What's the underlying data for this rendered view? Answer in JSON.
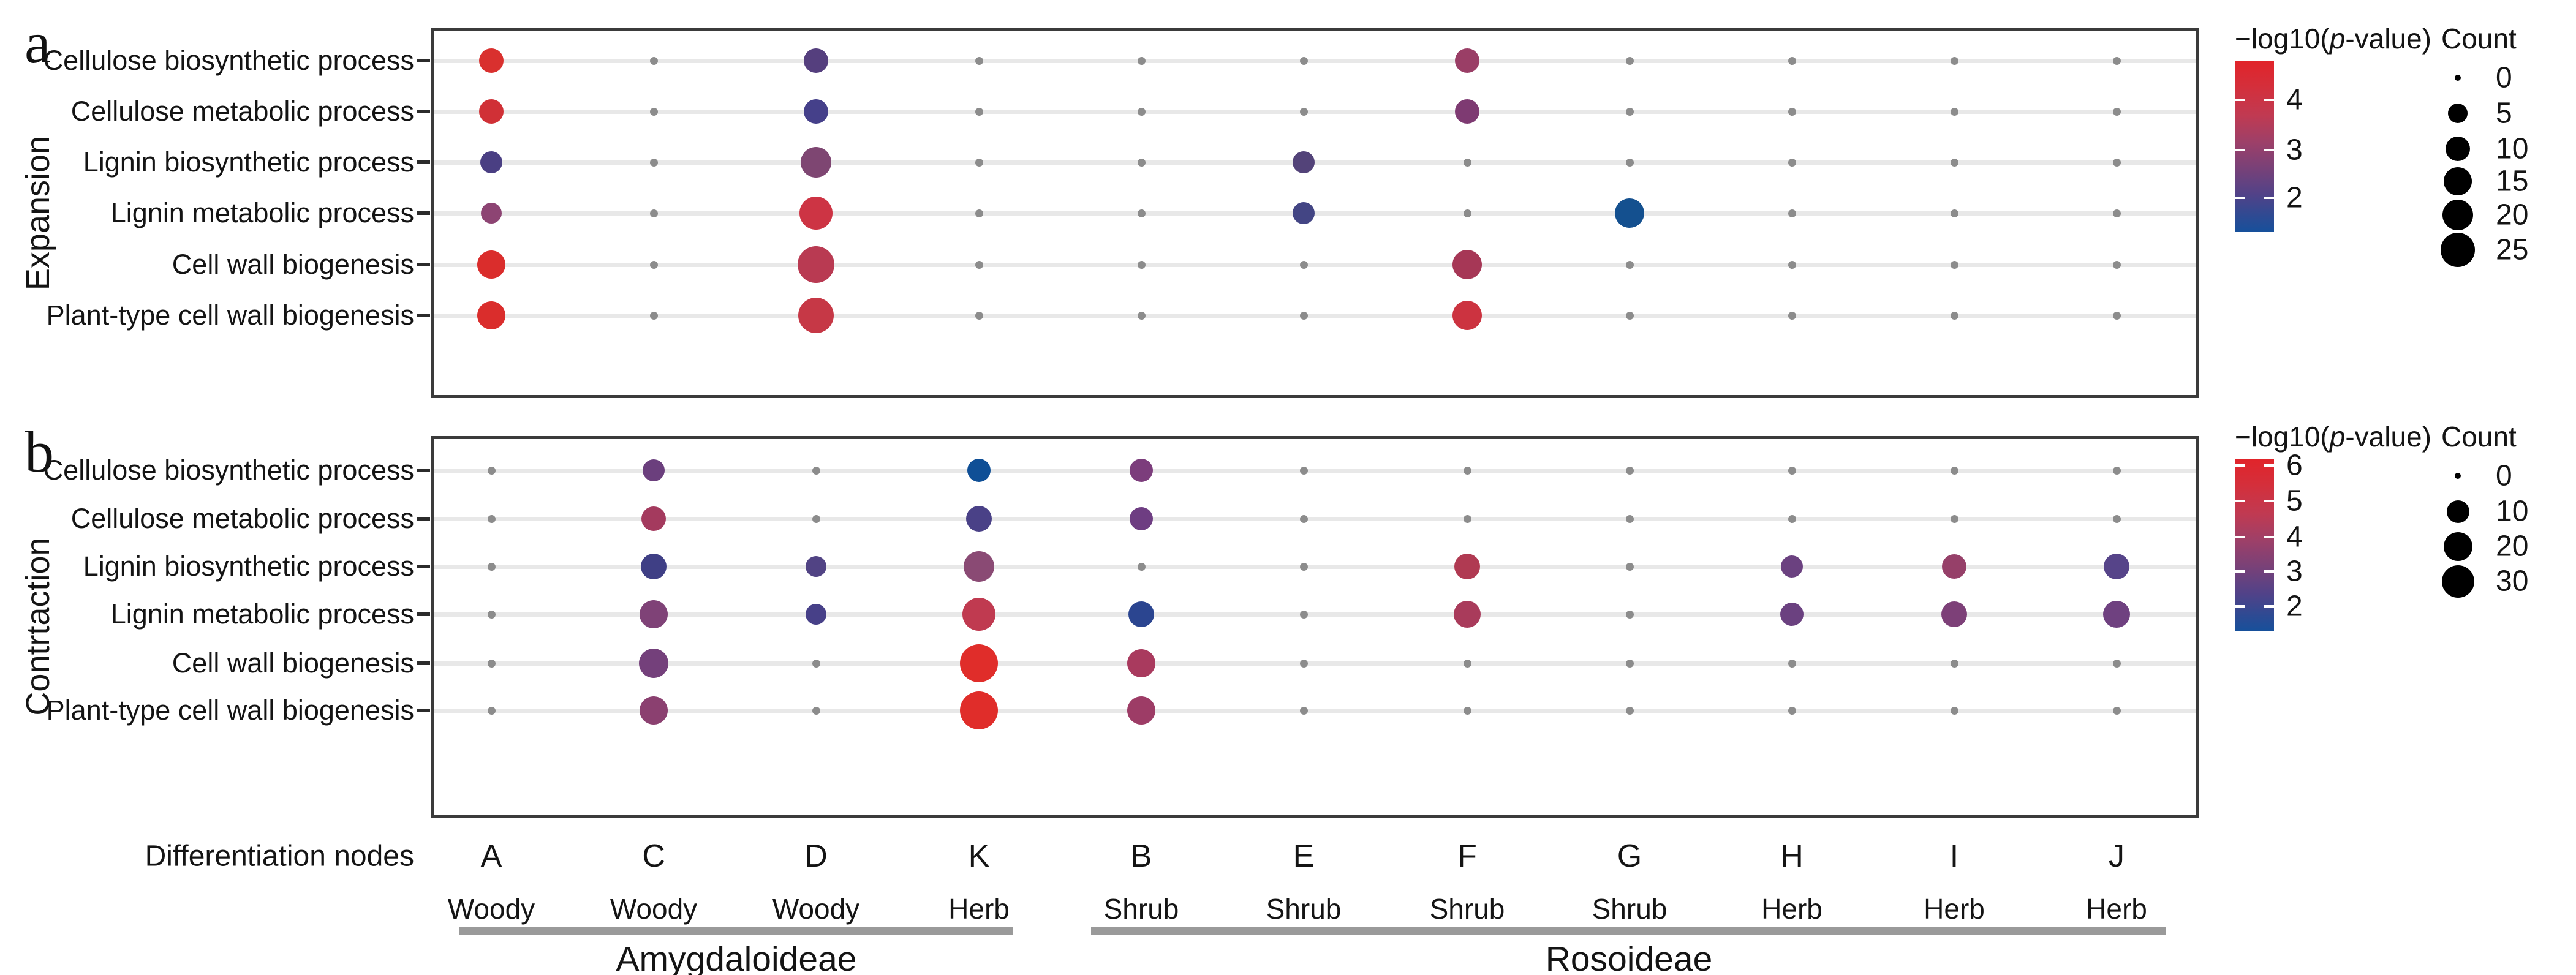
{
  "x_axis": {
    "title": "Differentiation nodes",
    "nodes": [
      "A",
      "C",
      "D",
      "K",
      "B",
      "E",
      "F",
      "G",
      "H",
      "I",
      "J"
    ],
    "habits": [
      "Woody",
      "Woody",
      "Woody",
      "Herb",
      "Shrub",
      "Shrub",
      "Shrub",
      "Shrub",
      "Herb",
      "Herb",
      "Herb"
    ],
    "groups": [
      {
        "label": "Amygdaloideae",
        "nodes": [
          "A",
          "C",
          "D",
          "K"
        ]
      },
      {
        "label": "Rosoideae",
        "nodes": [
          "B",
          "E",
          "F",
          "G",
          "H",
          "I",
          "J"
        ]
      }
    ]
  },
  "chart_data": [
    {
      "type": "scatter",
      "panel": "a",
      "direction_label": "Expansion",
      "x_categories": [
        "A",
        "C",
        "D",
        "K",
        "B",
        "E",
        "F",
        "G",
        "H",
        "I",
        "J"
      ],
      "y_categories": [
        "Cellulose biosynthetic process",
        "Cellulose metabolic process",
        "Lignin biosynthetic process",
        "Lignin metabolic process",
        "Cell wall biogenesis",
        "Plant-type cell wall biogenesis"
      ],
      "color_scale": {
        "title_prefix": "−log10(",
        "title_p": "p",
        "title_suffix": "-value)",
        "ticks": [
          "4",
          "3",
          "2"
        ],
        "top_color": "#e1242a",
        "bottom_color": "#17509b",
        "gradient": [
          {
            "color": "#e1242a",
            "pos": 0
          },
          {
            "color": "#d42f3b",
            "pos": 15
          },
          {
            "color": "#c03a52",
            "pos": 32
          },
          {
            "color": "#9c4069",
            "pos": 48
          },
          {
            "color": "#784178",
            "pos": 63
          },
          {
            "color": "#524288",
            "pos": 78
          },
          {
            "color": "#334991",
            "pos": 89
          },
          {
            "color": "#17509b",
            "pos": 100
          }
        ]
      },
      "size_scale": {
        "title": "Count",
        "items": [
          {
            "label": "0",
            "d": 10
          },
          {
            "label": "5",
            "d": 32
          },
          {
            "label": "10",
            "d": 40
          },
          {
            "label": "15",
            "d": 46
          },
          {
            "label": "20",
            "d": 50
          },
          {
            "label": "25",
            "d": 56
          }
        ]
      },
      "background_dot": {
        "color": "#8c8c8c",
        "d": 13,
        "count": 0
      },
      "points": [
        {
          "node": "A",
          "process": "Cellulose biosynthetic process",
          "neg_log10_p": 4.6,
          "count": 10,
          "color": "#d9302e",
          "d": 40
        },
        {
          "node": "A",
          "process": "Cellulose metabolic process",
          "neg_log10_p": 4.3,
          "count": 10,
          "color": "#d03036",
          "d": 40
        },
        {
          "node": "A",
          "process": "Lignin biosynthetic process",
          "neg_log10_p": 2.1,
          "count": 9,
          "color": "#4a3f83",
          "d": 36
        },
        {
          "node": "A",
          "process": "Lignin metabolic process",
          "neg_log10_p": 2.9,
          "count": 8,
          "color": "#8d4473",
          "d": 34
        },
        {
          "node": "A",
          "process": "Cell wall biogenesis",
          "neg_log10_p": 4.7,
          "count": 13,
          "color": "#da2d2c",
          "d": 46
        },
        {
          "node": "A",
          "process": "Plant-type cell wall biogenesis",
          "neg_log10_p": 4.7,
          "count": 13,
          "color": "#da2d2c",
          "d": 46
        },
        {
          "node": "D",
          "process": "Cellulose biosynthetic process",
          "neg_log10_p": 2.4,
          "count": 10,
          "color": "#553f7e",
          "d": 40
        },
        {
          "node": "D",
          "process": "Cellulose metabolic process",
          "neg_log10_p": 2.0,
          "count": 10,
          "color": "#45408a",
          "d": 40
        },
        {
          "node": "D",
          "process": "Lignin biosynthetic process",
          "neg_log10_p": 2.8,
          "count": 15,
          "color": "#7e4672",
          "d": 50
        },
        {
          "node": "D",
          "process": "Lignin metabolic process",
          "neg_log10_p": 4.1,
          "count": 18,
          "color": "#cd3444",
          "d": 54
        },
        {
          "node": "D",
          "process": "Cell wall biogenesis",
          "neg_log10_p": 3.6,
          "count": 22,
          "color": "#b93a52",
          "d": 60
        },
        {
          "node": "D",
          "process": "Plant-type cell wall biogenesis",
          "neg_log10_p": 4.0,
          "count": 20,
          "color": "#c63846",
          "d": 58
        },
        {
          "node": "E",
          "process": "Lignin biosynthetic process",
          "neg_log10_p": 2.3,
          "count": 9,
          "color": "#534379",
          "d": 36
        },
        {
          "node": "E",
          "process": "Lignin metabolic process",
          "neg_log10_p": 2.0,
          "count": 9,
          "color": "#434584",
          "d": 36
        },
        {
          "node": "F",
          "process": "Cellulose biosynthetic process",
          "neg_log10_p": 3.2,
          "count": 10,
          "color": "#9a3e66",
          "d": 40
        },
        {
          "node": "F",
          "process": "Cellulose metabolic process",
          "neg_log10_p": 2.7,
          "count": 10,
          "color": "#7e3a72",
          "d": 40
        },
        {
          "node": "F",
          "process": "Cell wall biogenesis",
          "neg_log10_p": 3.4,
          "count": 14,
          "color": "#a63756",
          "d": 48
        },
        {
          "node": "F",
          "process": "Plant-type cell wall biogenesis",
          "neg_log10_p": 4.1,
          "count": 14,
          "color": "#cc3340",
          "d": 48
        },
        {
          "node": "G",
          "process": "Lignin metabolic process",
          "neg_log10_p": 1.4,
          "count": 14,
          "color": "#14508f",
          "d": 48
        }
      ]
    },
    {
      "type": "scatter",
      "panel": "b",
      "direction_label": "Contrtaction",
      "x_categories": [
        "A",
        "C",
        "D",
        "K",
        "B",
        "E",
        "F",
        "G",
        "H",
        "I",
        "J"
      ],
      "y_categories": [
        "Cellulose biosynthetic process",
        "Cellulose metabolic process",
        "Lignin biosynthetic process",
        "Lignin metabolic process",
        "Cell wall biogenesis",
        "Plant-type cell wall biogenesis"
      ],
      "color_scale": {
        "title_prefix": "−log10(",
        "title_p": "p",
        "title_suffix": "-value)",
        "ticks": [
          "6",
          "5",
          "4",
          "3",
          "2"
        ],
        "top_color": "#e1242a",
        "bottom_color": "#17509b",
        "gradient": [
          {
            "color": "#e1242a",
            "pos": 0
          },
          {
            "color": "#d42f3b",
            "pos": 15
          },
          {
            "color": "#c03a52",
            "pos": 32
          },
          {
            "color": "#9c4069",
            "pos": 48
          },
          {
            "color": "#784178",
            "pos": 63
          },
          {
            "color": "#524288",
            "pos": 78
          },
          {
            "color": "#334991",
            "pos": 89
          },
          {
            "color": "#17509b",
            "pos": 100
          }
        ]
      },
      "size_scale": {
        "title": "Count",
        "items": [
          {
            "label": "0",
            "d": 10
          },
          {
            "label": "10",
            "d": 37
          },
          {
            "label": "20",
            "d": 47
          },
          {
            "label": "30",
            "d": 53
          }
        ]
      },
      "background_dot": {
        "color": "#8c8c8c",
        "d": 13,
        "count": 0
      },
      "points": [
        {
          "node": "C",
          "process": "Cellulose biosynthetic process",
          "neg_log10_p": 2.7,
          "count": 9,
          "color": "#6b3f7d",
          "d": 36
        },
        {
          "node": "C",
          "process": "Cellulose metabolic process",
          "neg_log10_p": 4.2,
          "count": 11,
          "color": "#a43a5e",
          "d": 40
        },
        {
          "node": "C",
          "process": "Lignin biosynthetic process",
          "neg_log10_p": 2.0,
          "count": 12,
          "color": "#3f3f85",
          "d": 42
        },
        {
          "node": "C",
          "process": "Lignin metabolic process",
          "neg_log10_p": 3.0,
          "count": 15,
          "color": "#7f4277",
          "d": 46
        },
        {
          "node": "C",
          "process": "Cell wall biogenesis",
          "neg_log10_p": 2.8,
          "count": 16,
          "color": "#74407b",
          "d": 48
        },
        {
          "node": "C",
          "process": "Plant-type cell wall biogenesis",
          "neg_log10_p": 3.3,
          "count": 15,
          "color": "#8b4070",
          "d": 46
        },
        {
          "node": "D",
          "process": "Lignin biosynthetic process",
          "neg_log10_p": 2.3,
          "count": 8,
          "color": "#514384",
          "d": 34
        },
        {
          "node": "D",
          "process": "Lignin metabolic process",
          "neg_log10_p": 2.1,
          "count": 8,
          "color": "#474088",
          "d": 34
        },
        {
          "node": "K",
          "process": "Cellulose biosynthetic process",
          "neg_log10_p": 1.5,
          "count": 10,
          "color": "#0f4f96",
          "d": 38
        },
        {
          "node": "K",
          "process": "Cellulose metabolic process",
          "neg_log10_p": 2.2,
          "count": 12,
          "color": "#4a4187",
          "d": 42
        },
        {
          "node": "K",
          "process": "Lignin biosynthetic process",
          "neg_log10_p": 3.2,
          "count": 18,
          "color": "#8a4a74",
          "d": 50
        },
        {
          "node": "K",
          "process": "Lignin metabolic process",
          "neg_log10_p": 4.8,
          "count": 22,
          "color": "#c03a50",
          "d": 54
        },
        {
          "node": "K",
          "process": "Cell wall biogenesis",
          "neg_log10_p": 6.0,
          "count": 30,
          "color": "#e02d2a",
          "d": 62
        },
        {
          "node": "K",
          "process": "Plant-type cell wall biogenesis",
          "neg_log10_p": 6.0,
          "count": 29,
          "color": "#e02d2a",
          "d": 62
        },
        {
          "node": "B",
          "process": "Cellulose biosynthetic process",
          "neg_log10_p": 3.0,
          "count": 10,
          "color": "#7c3d7c",
          "d": 38
        },
        {
          "node": "B",
          "process": "Cellulose metabolic process",
          "neg_log10_p": 2.7,
          "count": 10,
          "color": "#6e3d82",
          "d": 38
        },
        {
          "node": "B",
          "process": "Lignin metabolic process",
          "neg_log10_p": 1.8,
          "count": 12,
          "color": "#2b4590",
          "d": 42
        },
        {
          "node": "B",
          "process": "Cell wall biogenesis",
          "neg_log10_p": 4.3,
          "count": 15,
          "color": "#a93a5e",
          "d": 46
        },
        {
          "node": "B",
          "process": "Plant-type cell wall biogenesis",
          "neg_log10_p": 3.9,
          "count": 15,
          "color": "#9d3c66",
          "d": 46
        },
        {
          "node": "F",
          "process": "Lignin biosynthetic process",
          "neg_log10_p": 4.6,
          "count": 12,
          "color": "#b03a52",
          "d": 42
        },
        {
          "node": "F",
          "process": "Lignin metabolic process",
          "neg_log10_p": 4.3,
          "count": 13,
          "color": "#a93b5b",
          "d": 44
        },
        {
          "node": "H",
          "process": "Lignin biosynthetic process",
          "neg_log10_p": 2.8,
          "count": 9,
          "color": "#6b4180",
          "d": 36
        },
        {
          "node": "H",
          "process": "Lignin metabolic process",
          "neg_log10_p": 2.8,
          "count": 10,
          "color": "#6b4180",
          "d": 38
        },
        {
          "node": "I",
          "process": "Lignin biosynthetic process",
          "neg_log10_p": 3.6,
          "count": 11,
          "color": "#964069",
          "d": 40
        },
        {
          "node": "I",
          "process": "Lignin metabolic process",
          "neg_log10_p": 3.0,
          "count": 12,
          "color": "#7d4078",
          "d": 42
        },
        {
          "node": "J",
          "process": "Lignin biosynthetic process",
          "neg_log10_p": 2.3,
          "count": 12,
          "color": "#564489",
          "d": 42
        },
        {
          "node": "J",
          "process": "Lignin metabolic process",
          "neg_log10_p": 2.8,
          "count": 13,
          "color": "#6f4180",
          "d": 44
        }
      ]
    }
  ]
}
